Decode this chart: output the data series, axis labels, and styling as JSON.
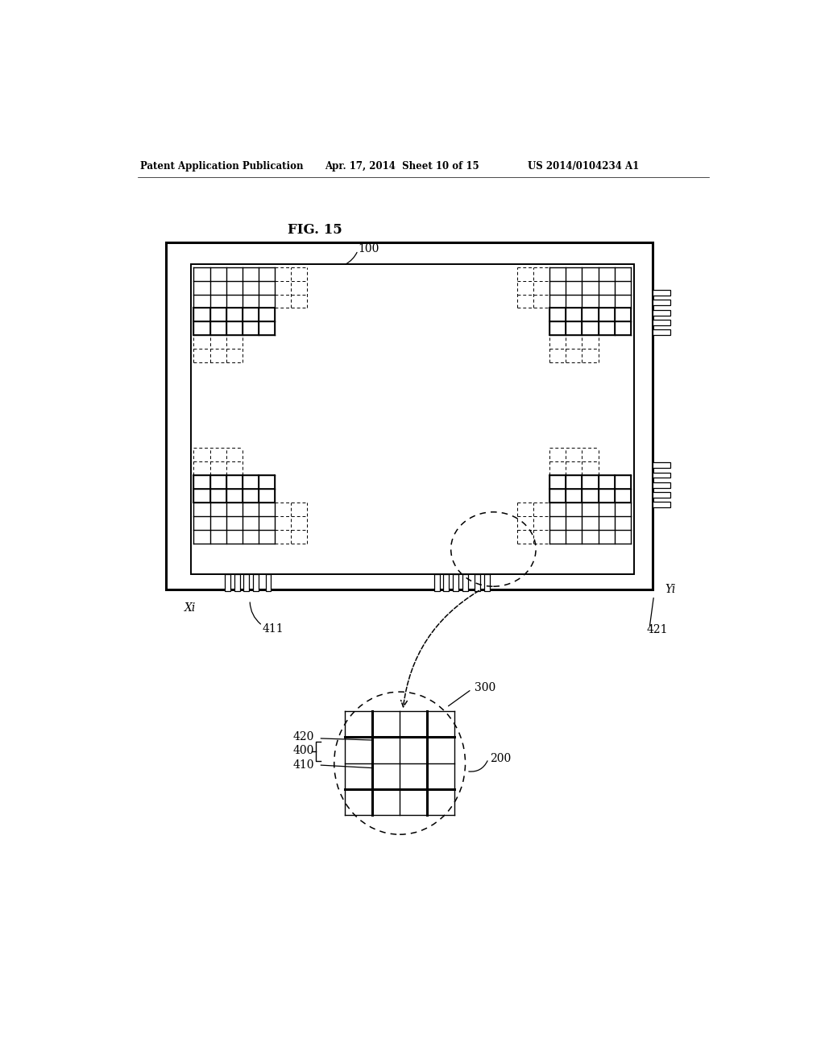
{
  "title": "FIG. 15",
  "header_left": "Patent Application Publication",
  "header_mid": "Apr. 17, 2014  Sheet 10 of 15",
  "header_right": "US 2014/0104234 A1",
  "bg_color": "#ffffff",
  "label_100": "100",
  "label_xi": "Xi",
  "label_yi": "Yi",
  "label_411": "411",
  "label_421": "421",
  "label_300": "300",
  "label_200": "200",
  "label_400": "400",
  "label_410": "410",
  "label_420": "420"
}
